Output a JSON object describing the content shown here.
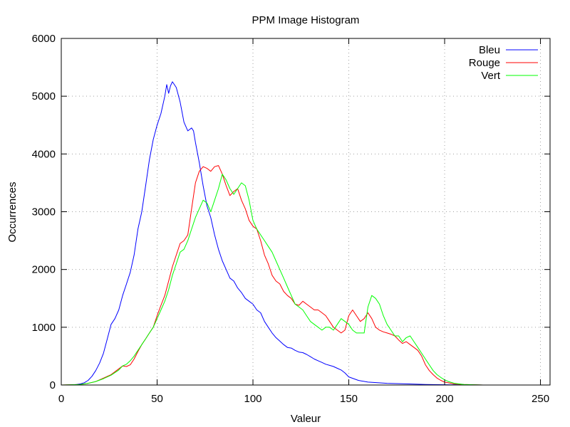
{
  "chart_data": {
    "type": "line",
    "title": "PPM Image Histogram",
    "xlabel": "Valeur",
    "ylabel": "Occurrences",
    "xlim": [
      0,
      255
    ],
    "ylim": [
      0,
      6000
    ],
    "xticks": [
      0,
      50,
      100,
      150,
      200,
      250
    ],
    "yticks": [
      0,
      1000,
      2000,
      3000,
      4000,
      5000,
      6000
    ],
    "grid": true,
    "legend_position": "top-right",
    "series": [
      {
        "name": "Bleu",
        "color": "#0000ff",
        "x": [
          0,
          5,
          8,
          10,
          12,
          14,
          16,
          18,
          20,
          22,
          24,
          26,
          28,
          30,
          32,
          34,
          36,
          38,
          40,
          42,
          44,
          46,
          48,
          50,
          52,
          54,
          55,
          56,
          57,
          58,
          59,
          60,
          62,
          64,
          66,
          68,
          69,
          70,
          72,
          74,
          76,
          78,
          80,
          82,
          84,
          86,
          88,
          90,
          92,
          94,
          96,
          98,
          100,
          102,
          104,
          106,
          108,
          110,
          112,
          114,
          116,
          118,
          120,
          122,
          124,
          126,
          128,
          130,
          132,
          134,
          136,
          138,
          140,
          142,
          144,
          146,
          148,
          150,
          155,
          160,
          170,
          180,
          190,
          200,
          210,
          220,
          230,
          240,
          255
        ],
        "y": [
          0,
          0,
          10,
          20,
          40,
          80,
          150,
          250,
          380,
          550,
          800,
          1050,
          1150,
          1300,
          1550,
          1750,
          1950,
          2250,
          2700,
          3000,
          3450,
          3900,
          4250,
          4500,
          4700,
          5000,
          5200,
          5050,
          5180,
          5250,
          5200,
          5150,
          4900,
          4550,
          4400,
          4450,
          4400,
          4200,
          3850,
          3450,
          3100,
          2900,
          2600,
          2350,
          2150,
          2000,
          1850,
          1800,
          1680,
          1600,
          1500,
          1450,
          1400,
          1300,
          1250,
          1100,
          1000,
          900,
          820,
          760,
          700,
          650,
          640,
          600,
          570,
          560,
          530,
          490,
          450,
          420,
          390,
          360,
          340,
          320,
          290,
          260,
          210,
          140,
          80,
          50,
          30,
          20,
          10,
          5,
          2,
          0,
          0,
          0,
          0
        ]
      },
      {
        "name": "Rouge",
        "color": "#ff0000",
        "x": [
          0,
          10,
          14,
          18,
          22,
          26,
          30,
          32,
          34,
          36,
          38,
          40,
          42,
          44,
          46,
          48,
          50,
          52,
          54,
          56,
          58,
          60,
          62,
          64,
          66,
          68,
          70,
          72,
          74,
          76,
          78,
          80,
          82,
          84,
          86,
          88,
          90,
          92,
          94,
          96,
          98,
          100,
          102,
          104,
          106,
          108,
          110,
          112,
          114,
          116,
          118,
          120,
          122,
          124,
          126,
          128,
          130,
          132,
          134,
          136,
          138,
          140,
          142,
          144,
          146,
          148,
          150,
          152,
          154,
          156,
          158,
          160,
          162,
          164,
          166,
          168,
          170,
          172,
          174,
          176,
          178,
          180,
          182,
          184,
          186,
          188,
          190,
          192,
          194,
          196,
          198,
          200,
          205,
          210,
          220,
          255
        ],
        "y": [
          0,
          10,
          30,
          60,
          120,
          180,
          280,
          330,
          320,
          350,
          450,
          580,
          700,
          800,
          900,
          1000,
          1200,
          1380,
          1550,
          1800,
          2050,
          2250,
          2450,
          2500,
          2600,
          3050,
          3500,
          3700,
          3780,
          3750,
          3700,
          3780,
          3800,
          3650,
          3450,
          3280,
          3350,
          3400,
          3200,
          3050,
          2850,
          2750,
          2700,
          2500,
          2250,
          2100,
          1900,
          1800,
          1750,
          1620,
          1550,
          1500,
          1400,
          1380,
          1450,
          1400,
          1350,
          1300,
          1300,
          1250,
          1200,
          1100,
          1000,
          950,
          900,
          950,
          1200,
          1300,
          1200,
          1100,
          1150,
          1250,
          1150,
          1000,
          950,
          920,
          900,
          880,
          850,
          780,
          720,
          750,
          700,
          650,
          600,
          500,
          350,
          250,
          180,
          120,
          80,
          50,
          20,
          10,
          0,
          0
        ]
      },
      {
        "name": "Vert",
        "color": "#00ff00",
        "x": [
          0,
          10,
          14,
          18,
          22,
          26,
          30,
          32,
          34,
          36,
          38,
          40,
          42,
          44,
          46,
          48,
          50,
          52,
          54,
          56,
          58,
          60,
          62,
          64,
          66,
          68,
          70,
          72,
          74,
          76,
          78,
          80,
          82,
          84,
          86,
          88,
          90,
          92,
          94,
          96,
          98,
          100,
          102,
          104,
          106,
          108,
          110,
          112,
          114,
          116,
          118,
          120,
          122,
          124,
          126,
          128,
          130,
          132,
          134,
          136,
          138,
          140,
          142,
          144,
          146,
          148,
          150,
          152,
          154,
          156,
          158,
          160,
          162,
          164,
          166,
          168,
          170,
          172,
          174,
          176,
          178,
          180,
          182,
          184,
          186,
          188,
          190,
          192,
          194,
          196,
          198,
          200,
          202,
          205,
          210,
          220,
          255
        ],
        "y": [
          0,
          10,
          30,
          60,
          110,
          170,
          260,
          330,
          360,
          420,
          500,
          600,
          700,
          800,
          900,
          1000,
          1150,
          1300,
          1450,
          1650,
          1900,
          2100,
          2300,
          2350,
          2500,
          2700,
          2900,
          3050,
          3200,
          3150,
          3000,
          3200,
          3400,
          3650,
          3550,
          3400,
          3300,
          3400,
          3500,
          3450,
          3200,
          2850,
          2700,
          2600,
          2500,
          2400,
          2300,
          2150,
          2000,
          1850,
          1700,
          1550,
          1400,
          1350,
          1300,
          1200,
          1100,
          1050,
          1000,
          950,
          1000,
          1000,
          950,
          1050,
          1150,
          1100,
          1050,
          950,
          900,
          900,
          900,
          1350,
          1550,
          1500,
          1400,
          1200,
          1050,
          950,
          850,
          850,
          750,
          820,
          850,
          750,
          650,
          550,
          450,
          350,
          250,
          180,
          130,
          90,
          60,
          30,
          10,
          0,
          0
        ]
      }
    ]
  }
}
